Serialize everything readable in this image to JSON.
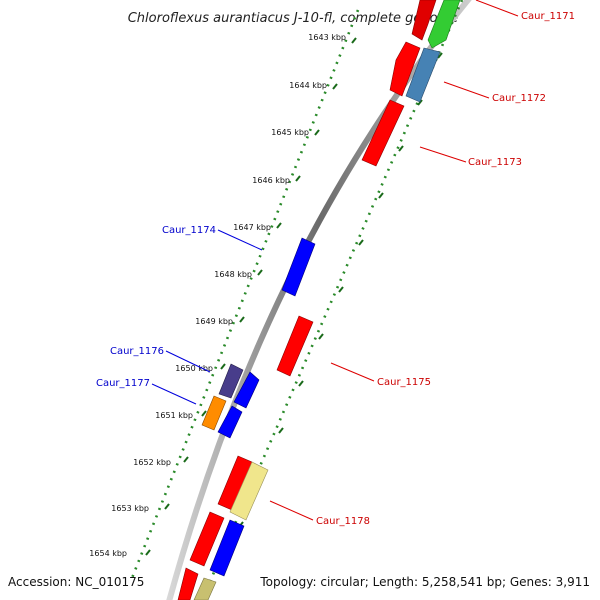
{
  "title": "Chloroflexus aurantiacus J-10-fl, complete genome",
  "accession": "Accession: NC_010175",
  "summary": "Topology: circular; Length: 5,258,541 bp; Genes: 3,911",
  "ticks": [
    "1643 kbp",
    "1644 kbp",
    "1645 kbp",
    "1646 kbp",
    "1647 kbp",
    "1648 kbp",
    "1649 kbp",
    "1650 kbp",
    "1651 kbp",
    "1652 kbp",
    "1653 kbp",
    "1654 kbp"
  ],
  "genes": [
    {
      "label": "Caur_1171",
      "color": "#e00000",
      "label_color": "#cc0000"
    },
    {
      "label": "Caur_1172",
      "color": "#4682b4",
      "label_color": "#cc0000"
    },
    {
      "label": "Caur_1173",
      "color": "#ff0000",
      "label_color": "#cc0000"
    },
    {
      "label": "Caur_1174",
      "color": "#0000ff",
      "label_color": "#0000cc"
    },
    {
      "label": "Caur_1175",
      "color": "#ff0000",
      "label_color": "#cc0000"
    },
    {
      "label": "Caur_1176",
      "color": "#483d8b",
      "label_color": "#0000cc"
    },
    {
      "label": "Caur_1177",
      "color": "#ff8c00",
      "label_color": "#0000cc"
    },
    {
      "label": "Caur_1178",
      "color": "#f0e68c",
      "label_color": "#cc0000"
    }
  ],
  "colors": {
    "backbone": "#808080",
    "tick_track": "#2a8a2a",
    "forward_gene": "#ff0000",
    "reverse_gene": "#0000ff",
    "green_gene": "#33cc33",
    "olive_gene": "#c8c070"
  }
}
